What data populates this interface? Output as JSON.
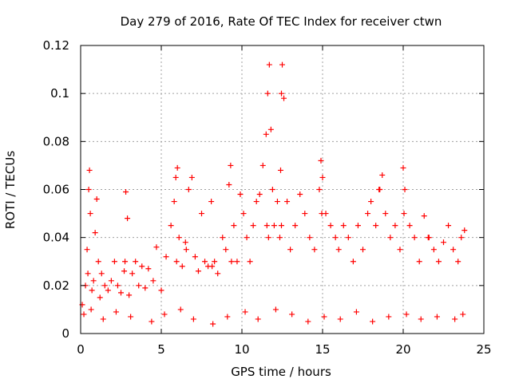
{
  "chart_data": {
    "type": "scatter",
    "title": "Day 279 of 2016, Rate Of TEC Index for receiver ctwn",
    "xlabel": "GPS time / hours",
    "ylabel": "ROTI / TECUs",
    "xlim": [
      0,
      25
    ],
    "ylim": [
      0,
      0.12
    ],
    "xticks": [
      0,
      5,
      10,
      15,
      20,
      25
    ],
    "xtick_labels": [
      "0",
      "5",
      "10",
      "15",
      "20",
      "25"
    ],
    "yticks": [
      0,
      0.02,
      0.04,
      0.06,
      0.08,
      0.1,
      0.12
    ],
    "ytick_labels": [
      "0",
      "0.02",
      "0.04",
      "0.06",
      "0.08",
      "0.1",
      "0.12"
    ],
    "grid": true,
    "marker": "+",
    "marker_color": "#ff0000",
    "series": [
      {
        "name": "ROTI",
        "x": [
          0.1,
          0.3,
          0.4,
          0.5,
          0.55,
          0.6,
          0.7,
          0.8,
          0.9,
          1.0,
          1.1,
          1.2,
          1.3,
          1.5,
          1.7,
          1.9,
          2.1,
          2.3,
          2.5,
          2.7,
          2.8,
          2.9,
          3.0,
          3.2,
          3.4,
          3.6,
          3.8,
          4.0,
          4.2,
          4.5,
          4.7,
          5.0,
          5.3,
          5.6,
          5.8,
          5.9,
          6.0,
          6.1,
          6.3,
          6.5,
          6.7,
          6.9,
          7.1,
          7.3,
          7.5,
          7.7,
          7.9,
          8.1,
          8.3,
          8.5,
          8.8,
          9.0,
          9.2,
          9.3,
          9.5,
          9.7,
          9.9,
          10.1,
          10.3,
          10.5,
          10.7,
          10.9,
          11.1,
          11.3,
          11.5,
          11.6,
          11.7,
          11.8,
          11.9,
          12.0,
          12.2,
          12.4,
          12.45,
          12.5,
          12.6,
          12.8,
          13.0,
          13.3,
          13.6,
          13.9,
          14.2,
          14.5,
          14.8,
          14.9,
          15.0,
          15.2,
          15.5,
          15.8,
          16.0,
          16.3,
          16.6,
          16.9,
          17.2,
          17.5,
          17.8,
          18.0,
          18.3,
          18.5,
          18.7,
          18.9,
          19.2,
          19.5,
          19.8,
          20.0,
          20.1,
          20.4,
          20.7,
          21.0,
          21.3,
          21.6,
          21.9,
          22.2,
          22.5,
          22.8,
          23.1,
          23.4,
          23.6,
          23.8,
          0.2,
          0.65,
          1.4,
          2.2,
          3.1,
          4.4,
          5.2,
          6.2,
          7.0,
          8.2,
          9.1,
          10.2,
          11.0,
          12.1,
          13.1,
          14.1,
          15.1,
          16.1,
          17.1,
          18.1,
          19.1,
          20.2,
          21.1,
          22.1,
          23.2,
          23.7,
          0.45,
          2.75,
          5.95,
          6.55,
          8.15,
          9.35,
          11.55,
          11.65,
          12.35,
          12.45,
          14.95,
          18.55,
          20.05,
          21.55
        ],
        "y": [
          0.012,
          0.02,
          0.035,
          0.06,
          0.068,
          0.05,
          0.018,
          0.022,
          0.042,
          0.056,
          0.03,
          0.015,
          0.025,
          0.02,
          0.018,
          0.022,
          0.03,
          0.02,
          0.017,
          0.026,
          0.059,
          0.048,
          0.016,
          0.025,
          0.03,
          0.02,
          0.028,
          0.019,
          0.027,
          0.022,
          0.036,
          0.018,
          0.032,
          0.045,
          0.055,
          0.065,
          0.069,
          0.04,
          0.028,
          0.038,
          0.06,
          0.065,
          0.032,
          0.026,
          0.05,
          0.03,
          0.028,
          0.055,
          0.03,
          0.025,
          0.04,
          0.035,
          0.062,
          0.07,
          0.045,
          0.03,
          0.058,
          0.05,
          0.04,
          0.03,
          0.045,
          0.055,
          0.058,
          0.07,
          0.083,
          0.1,
          0.112,
          0.085,
          0.06,
          0.045,
          0.055,
          0.068,
          0.1,
          0.112,
          0.098,
          0.055,
          0.035,
          0.045,
          0.058,
          0.05,
          0.04,
          0.035,
          0.06,
          0.072,
          0.065,
          0.05,
          0.045,
          0.04,
          0.035,
          0.045,
          0.04,
          0.03,
          0.045,
          0.035,
          0.05,
          0.055,
          0.045,
          0.06,
          0.066,
          0.05,
          0.04,
          0.045,
          0.035,
          0.069,
          0.06,
          0.045,
          0.04,
          0.03,
          0.049,
          0.04,
          0.035,
          0.03,
          0.038,
          0.045,
          0.035,
          0.03,
          0.04,
          0.043,
          0.008,
          0.01,
          0.006,
          0.009,
          0.007,
          0.005,
          0.008,
          0.01,
          0.006,
          0.004,
          0.007,
          0.009,
          0.006,
          0.01,
          0.008,
          0.005,
          0.007,
          0.006,
          0.009,
          0.005,
          0.007,
          0.008,
          0.006,
          0.007,
          0.006,
          0.008,
          0.025,
          0.03,
          0.03,
          0.035,
          0.028,
          0.03,
          0.045,
          0.04,
          0.04,
          0.045,
          0.05,
          0.06,
          0.05,
          0.04
        ]
      }
    ]
  }
}
